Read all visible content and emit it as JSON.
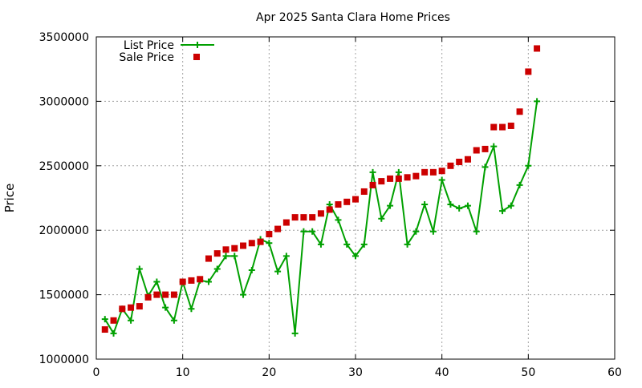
{
  "chart_data": {
    "type": "line",
    "title": "Apr 2025 Santa Clara Home Prices",
    "xlabel": "",
    "ylabel": "Price",
    "xlim": [
      0,
      60
    ],
    "ylim": [
      1000000,
      3500000
    ],
    "x_ticks": [
      "0",
      "10",
      "20",
      "30",
      "40",
      "50",
      "60"
    ],
    "y_ticks": [
      "1000000",
      "1500000",
      "2000000",
      "2500000",
      "3000000",
      "3500000"
    ],
    "grid": true,
    "legend_position": "top-left",
    "series": [
      {
        "name": "List Price",
        "style": "lines+markers",
        "marker": "plus",
        "color": "#00a000",
        "points": [
          [
            1,
            1310000
          ],
          [
            2,
            1200000
          ],
          [
            3,
            1390000
          ],
          [
            4,
            1300000
          ],
          [
            5,
            1700000
          ],
          [
            6,
            1490000
          ],
          [
            7,
            1600000
          ],
          [
            8,
            1400000
          ],
          [
            9,
            1300000
          ],
          [
            10,
            1600000
          ],
          [
            11,
            1390000
          ],
          [
            12,
            1610000
          ],
          [
            13,
            1600000
          ],
          [
            14,
            1700000
          ],
          [
            15,
            1800000
          ],
          [
            16,
            1800000
          ],
          [
            17,
            1500000
          ],
          [
            18,
            1690000
          ],
          [
            19,
            1930000
          ],
          [
            20,
            1900000
          ],
          [
            21,
            1680000
          ],
          [
            22,
            1800000
          ],
          [
            23,
            1200000
          ],
          [
            24,
            1990000
          ],
          [
            25,
            1990000
          ],
          [
            26,
            1890000
          ],
          [
            27,
            2200000
          ],
          [
            28,
            2080000
          ],
          [
            29,
            1890000
          ],
          [
            30,
            1800000
          ],
          [
            31,
            1890000
          ],
          [
            32,
            2450000
          ],
          [
            33,
            2090000
          ],
          [
            34,
            2190000
          ],
          [
            35,
            2450000
          ],
          [
            36,
            1890000
          ],
          [
            37,
            1990000
          ],
          [
            38,
            2200000
          ],
          [
            39,
            1990000
          ],
          [
            40,
            2390000
          ],
          [
            41,
            2200000
          ],
          [
            42,
            2170000
          ],
          [
            43,
            2190000
          ],
          [
            44,
            1990000
          ],
          [
            45,
            2490000
          ],
          [
            46,
            2650000
          ],
          [
            47,
            2150000
          ],
          [
            48,
            2190000
          ],
          [
            49,
            2350000
          ],
          [
            50,
            2500000
          ],
          [
            51,
            3000000
          ]
        ]
      },
      {
        "name": "Sale Price",
        "style": "markers",
        "marker": "square",
        "color": "#cc0000",
        "points": [
          [
            1,
            1230000
          ],
          [
            2,
            1300000
          ],
          [
            3,
            1390000
          ],
          [
            4,
            1400000
          ],
          [
            5,
            1410000
          ],
          [
            6,
            1480000
          ],
          [
            7,
            1500000
          ],
          [
            8,
            1500000
          ],
          [
            9,
            1500000
          ],
          [
            10,
            1600000
          ],
          [
            11,
            1610000
          ],
          [
            12,
            1620000
          ],
          [
            13,
            1780000
          ],
          [
            14,
            1820000
          ],
          [
            15,
            1850000
          ],
          [
            16,
            1860000
          ],
          [
            17,
            1880000
          ],
          [
            18,
            1900000
          ],
          [
            19,
            1910000
          ],
          [
            20,
            1970000
          ],
          [
            21,
            2010000
          ],
          [
            22,
            2060000
          ],
          [
            23,
            2100000
          ],
          [
            24,
            2100000
          ],
          [
            25,
            2100000
          ],
          [
            26,
            2130000
          ],
          [
            27,
            2160000
          ],
          [
            28,
            2200000
          ],
          [
            29,
            2220000
          ],
          [
            30,
            2240000
          ],
          [
            31,
            2300000
          ],
          [
            32,
            2350000
          ],
          [
            33,
            2380000
          ],
          [
            34,
            2400000
          ],
          [
            35,
            2400000
          ],
          [
            36,
            2410000
          ],
          [
            37,
            2420000
          ],
          [
            38,
            2450000
          ],
          [
            39,
            2450000
          ],
          [
            40,
            2460000
          ],
          [
            41,
            2500000
          ],
          [
            42,
            2530000
          ],
          [
            43,
            2550000
          ],
          [
            44,
            2620000
          ],
          [
            45,
            2630000
          ],
          [
            46,
            2800000
          ],
          [
            47,
            2800000
          ],
          [
            48,
            2810000
          ],
          [
            49,
            2920000
          ],
          [
            50,
            3230000
          ],
          [
            51,
            3410000
          ]
        ]
      }
    ]
  }
}
